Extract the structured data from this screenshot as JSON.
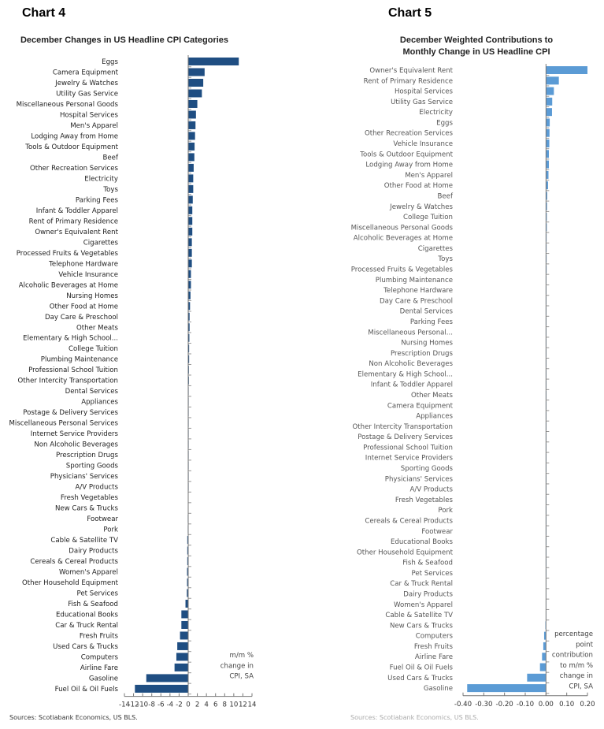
{
  "chart_data": [
    {
      "type": "bar",
      "orientation": "horizontal",
      "header": "Chart 4",
      "title": "December Changes in US Headline CPI Categories",
      "annotation": [
        "m/m %",
        "change in",
        "CPI, SA"
      ],
      "source": "Sources: Scotiabank Economics, US BLS.",
      "xlim": [
        -14,
        14
      ],
      "xticks": [
        -14,
        -12,
        -10,
        -8,
        -6,
        -4,
        -2,
        0,
        2,
        4,
        6,
        8,
        10,
        12,
        14
      ],
      "bar_color": "#1F4E82",
      "categories": [
        "Eggs",
        "Camera Equipment",
        "Jewelry & Watches",
        "Utility Gas Service",
        "Miscellaneous Personal Goods",
        "Hospital Services",
        "Men's Apparel",
        "Lodging Away from Home",
        "Tools & Outdoor Equipment",
        "Beef",
        "Other Recreation Services",
        "Electricity",
        "Toys",
        "Parking Fees",
        "Infant & Toddler Apparel",
        "Rent of Primary Residence",
        "Owner's Equivalent Rent",
        "Cigarettes",
        "Processed Fruits & Vegetables",
        "Telephone Hardware",
        "Vehicle Insurance",
        "Alcoholic Beverages at Home",
        "Nursing Homes",
        "Other Food at Home",
        "Day Care & Preschool",
        "Other Meats",
        "Elementary & High School...",
        "College Tuition",
        "Plumbing Maintenance",
        "Professional School Tuition",
        "Other Intercity Transportation",
        "Dental Services",
        "Appliances",
        "Postage & Delivery Services",
        "Miscellaneous Personal Services",
        "Internet Service Providers",
        "Non Alcoholic Beverages",
        "Prescription Drugs",
        "Sporting Goods",
        "Physicians' Services",
        "A/V Products",
        "Fresh Vegetables",
        "New Cars & Trucks",
        "Footwear",
        "Pork",
        "Cable & Satellite TV",
        "Dairy Products",
        "Cereals & Cereal Products",
        "Women's Apparel",
        "Other Household Equipment",
        "Pet Services",
        "Fish & Seafood",
        "Educational Books",
        "Car & Truck Rental",
        "Fresh Fruits",
        "Used Cars & Trucks",
        "Computers",
        "Airline Fare",
        "Gasoline",
        "Fuel Oil & Oil Fuels"
      ],
      "values": [
        11.1,
        3.6,
        3.3,
        3.0,
        2.0,
        1.7,
        1.6,
        1.5,
        1.4,
        1.35,
        1.2,
        1.1,
        1.1,
        1.0,
        0.9,
        0.9,
        0.9,
        0.8,
        0.8,
        0.8,
        0.6,
        0.6,
        0.5,
        0.4,
        0.3,
        0.3,
        0.25,
        0.2,
        0.2,
        0.15,
        0.15,
        0.1,
        0.1,
        0.1,
        0.05,
        0.05,
        0.05,
        0.0,
        0.0,
        0.0,
        0.0,
        -0.05,
        -0.05,
        -0.1,
        -0.1,
        -0.2,
        -0.2,
        -0.2,
        -0.25,
        -0.25,
        -0.3,
        -0.6,
        -1.5,
        -1.5,
        -1.8,
        -2.4,
        -2.6,
        -3.0,
        -9.2,
        -11.7
      ]
    },
    {
      "type": "bar",
      "orientation": "horizontal",
      "header": "Chart 5",
      "title": [
        "December Weighted Contributions to",
        "Monthly Change in US Headline CPI"
      ],
      "annotation": [
        "percentage",
        "point",
        "contribution",
        "to m/m %",
        "change in",
        "CPI, SA"
      ],
      "source": "Sources: Scotiabank Economics, US BLS.",
      "xlim": [
        -0.4,
        0.2
      ],
      "xticks": [
        "-0.40",
        "-0.30",
        "-0.20",
        "-0.10",
        "0.00",
        "0.10",
        "0.20"
      ],
      "bar_color": "#5B9BD5",
      "categories": [
        "Owner's Equivalent Rent",
        "Rent of Primary Residence",
        "Hospital Services",
        "Utility Gas Service",
        "Electricity",
        "Eggs",
        "Other Recreation Services",
        "Vehicle Insurance",
        "Tools & Outdoor Equipment",
        "Lodging Away from Home",
        "Men's Apparel",
        "Other Food at Home",
        "Beef",
        "Jewelry & Watches",
        "College Tuition",
        "Miscellaneous Personal Goods",
        "Alcoholic Beverages at Home",
        "Cigarettes",
        "Toys",
        "Processed Fruits & Vegetables",
        "Plumbing Maintenance",
        "Telephone Hardware",
        "Day Care & Preschool",
        "Dental Services",
        "Parking Fees",
        "Miscellaneous Personal...",
        "Nursing Homes",
        "Prescription Drugs",
        "Non Alcoholic Beverages",
        "Elementary & High School...",
        "Infant & Toddler Apparel",
        "Other Meats",
        "Camera Equipment",
        "Appliances",
        "Other Intercity Transportation",
        "Postage & Delivery Services",
        "Professional School Tuition",
        "Internet Service Providers",
        "Sporting Goods",
        "Physicians' Services",
        "A/V Products",
        "Fresh Vegetables",
        "Pork",
        "Cereals & Cereal Products",
        "Footwear",
        "Educational Books",
        "Other Household Equipment",
        "Fish & Seafood",
        "Pet Services",
        "Car & Truck Rental",
        "Dairy Products",
        "Women's Apparel",
        "Cable & Satellite TV",
        "New Cars & Trucks",
        "Computers",
        "Fresh Fruits",
        "Airline Fare",
        "Fuel Oil & Oil Fuels",
        "Used Cars & Trucks",
        "Gasoline"
      ],
      "values": [
        0.2,
        0.062,
        0.038,
        0.03,
        0.029,
        0.018,
        0.017,
        0.016,
        0.014,
        0.014,
        0.012,
        0.01,
        0.006,
        0.005,
        0.004,
        0.004,
        0.003,
        0.003,
        0.003,
        0.003,
        0.002,
        0.002,
        0.002,
        0.002,
        0.002,
        0.001,
        0.001,
        0.001,
        0.001,
        0.001,
        0.001,
        0.001,
        0.001,
        0.0,
        0.0,
        0.0,
        0.0,
        0.0,
        0.0,
        0.0,
        0.0,
        0.0,
        0.0,
        0.0,
        0.0,
        0.0,
        0.0,
        0.0,
        0.0,
        -0.001,
        -0.001,
        -0.001,
        -0.001,
        -0.003,
        -0.009,
        -0.013,
        -0.019,
        -0.029,
        -0.091,
        -0.38
      ]
    }
  ]
}
